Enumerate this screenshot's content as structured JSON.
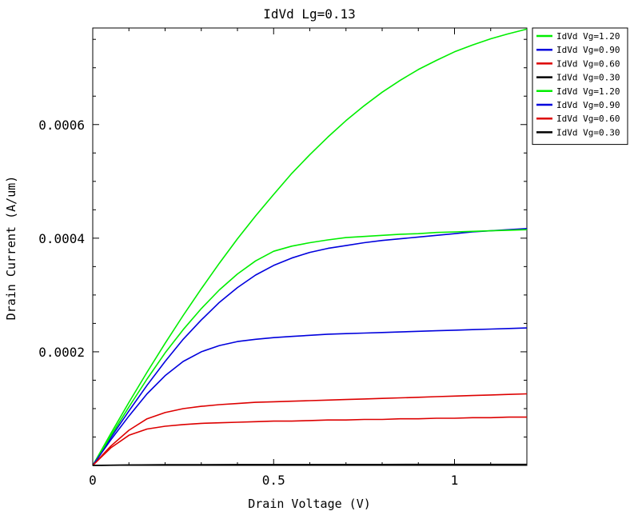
{
  "chart_data": {
    "type": "line",
    "title": "IdVd Lg=0.13",
    "xlabel": "Drain Voltage (V)",
    "ylabel": "Drain Current (A/um)",
    "xlim": [
      0,
      1.2
    ],
    "ylim": [
      0,
      0.00077
    ],
    "x_ticks": [
      {
        "value": 0,
        "label": "0"
      },
      {
        "value": 0.5,
        "label": "0.5"
      },
      {
        "value": 1,
        "label": "1"
      }
    ],
    "y_ticks": [
      {
        "value": 0.0002,
        "label": "0.0002"
      },
      {
        "value": 0.0004,
        "label": "0.0004"
      },
      {
        "value": 0.0006,
        "label": "0.0006"
      }
    ],
    "grid": false,
    "legend_position": "right",
    "series": [
      {
        "name": "IdVd Vg=1.20",
        "color": "#00ee00",
        "x": [
          0,
          0.05,
          0.1,
          0.15,
          0.2,
          0.25,
          0.3,
          0.35,
          0.4,
          0.45,
          0.5,
          0.55,
          0.6,
          0.65,
          0.7,
          0.75,
          0.8,
          0.85,
          0.9,
          0.95,
          1.0,
          1.05,
          1.1,
          1.15,
          1.2
        ],
        "y": [
          0,
          5.6e-05,
          0.000111,
          0.000164,
          0.000215,
          0.000264,
          0.000311,
          0.000356,
          0.000399,
          0.000439,
          0.000477,
          0.000514,
          0.000547,
          0.000578,
          0.000607,
          0.000633,
          0.000657,
          0.000678,
          0.000697,
          0.000713,
          0.000728,
          0.00074,
          0.000751,
          0.00076,
          0.000768
        ]
      },
      {
        "name": "IdVd Vg=0.90",
        "color": "#0000dd",
        "x": [
          0,
          0.05,
          0.1,
          0.15,
          0.2,
          0.25,
          0.3,
          0.35,
          0.4,
          0.45,
          0.5,
          0.55,
          0.6,
          0.65,
          0.7,
          0.75,
          0.8,
          0.85,
          0.9,
          0.95,
          1.0,
          1.05,
          1.1,
          1.15,
          1.2
        ],
        "y": [
          0,
          4.9e-05,
          9.6e-05,
          0.000141,
          0.000183,
          0.000222,
          0.000256,
          0.000287,
          0.000313,
          0.000335,
          0.000352,
          0.000365,
          0.000375,
          0.000382,
          0.000387,
          0.000392,
          0.000396,
          0.000399,
          0.000402,
          0.000405,
          0.000408,
          0.000411,
          0.000413,
          0.000415,
          0.000417
        ]
      },
      {
        "name": "IdVd Vg=0.60",
        "color": "#dd0000",
        "x": [
          0,
          0.05,
          0.1,
          0.15,
          0.2,
          0.25,
          0.3,
          0.35,
          0.4,
          0.45,
          0.5,
          0.55,
          0.6,
          0.65,
          0.7,
          0.75,
          0.8,
          0.85,
          0.9,
          0.95,
          1.0,
          1.05,
          1.1,
          1.15,
          1.2
        ],
        "y": [
          0,
          3.4e-05,
          6.2e-05,
          8.2e-05,
          9.3e-05,
          0.0001,
          0.000104,
          0.000107,
          0.000109,
          0.000111,
          0.000112,
          0.000113,
          0.000114,
          0.000115,
          0.000116,
          0.000117,
          0.000118,
          0.000119,
          0.00012,
          0.000121,
          0.000122,
          0.000123,
          0.000124,
          0.000125,
          0.000126
        ]
      },
      {
        "name": "IdVd Vg=0.30",
        "color": "#000000",
        "x": [
          0,
          0.1,
          0.2,
          0.3,
          0.4,
          0.5,
          0.6,
          0.7,
          0.8,
          0.9,
          1.0,
          1.1,
          1.2
        ],
        "y": [
          0,
          8e-07,
          1.2e-06,
          1.4e-06,
          1.5e-06,
          1.6e-06,
          1.6e-06,
          1.7e-06,
          1.7e-06,
          1.8e-06,
          1.8e-06,
          1.8e-06,
          1.9e-06
        ]
      },
      {
        "name": "IdVd Vg=1.20",
        "color": "#00ee00",
        "x": [
          0,
          0.05,
          0.1,
          0.15,
          0.2,
          0.25,
          0.3,
          0.35,
          0.4,
          0.45,
          0.5,
          0.55,
          0.6,
          0.65,
          0.7,
          0.75,
          0.8,
          0.85,
          0.9,
          0.95,
          1.0,
          1.05,
          1.1,
          1.15,
          1.2
        ],
        "y": [
          0,
          5.2e-05,
          0.000103,
          0.000152,
          0.000198,
          0.000239,
          0.000276,
          0.000309,
          0.000337,
          0.00036,
          0.000377,
          0.000386,
          0.000392,
          0.000397,
          0.000401,
          0.000403,
          0.000405,
          0.000407,
          0.000408,
          0.00041,
          0.000411,
          0.000412,
          0.000413,
          0.000414,
          0.000415
        ]
      },
      {
        "name": "IdVd Vg=0.90",
        "color": "#0000dd",
        "x": [
          0,
          0.05,
          0.1,
          0.15,
          0.2,
          0.25,
          0.3,
          0.35,
          0.4,
          0.45,
          0.5,
          0.55,
          0.6,
          0.65,
          0.7,
          0.75,
          0.8,
          0.85,
          0.9,
          0.95,
          1.0,
          1.05,
          1.1,
          1.15,
          1.2
        ],
        "y": [
          0,
          4.5e-05,
          8.7e-05,
          0.000126,
          0.000158,
          0.000183,
          0.0002,
          0.000211,
          0.000218,
          0.000222,
          0.000225,
          0.000227,
          0.000229,
          0.000231,
          0.000232,
          0.000233,
          0.000234,
          0.000235,
          0.000236,
          0.000237,
          0.000238,
          0.000239,
          0.00024,
          0.000241,
          0.000242
        ]
      },
      {
        "name": "IdVd Vg=0.60",
        "color": "#dd0000",
        "x": [
          0,
          0.05,
          0.1,
          0.15,
          0.2,
          0.25,
          0.3,
          0.35,
          0.4,
          0.45,
          0.5,
          0.55,
          0.6,
          0.65,
          0.7,
          0.75,
          0.8,
          0.85,
          0.9,
          0.95,
          1.0,
          1.05,
          1.1,
          1.15,
          1.2
        ],
        "y": [
          0,
          3.1e-05,
          5.3e-05,
          6.4e-05,
          6.9e-05,
          7.2e-05,
          7.4e-05,
          7.5e-05,
          7.6e-05,
          7.7e-05,
          7.8e-05,
          7.8e-05,
          7.9e-05,
          8e-05,
          8e-05,
          8.1e-05,
          8.1e-05,
          8.2e-05,
          8.2e-05,
          8.3e-05,
          8.3e-05,
          8.4e-05,
          8.4e-05,
          8.5e-05,
          8.5e-05
        ]
      },
      {
        "name": "IdVd Vg=0.30",
        "color": "#000000",
        "x": [
          0,
          0.1,
          0.2,
          0.3,
          0.4,
          0.5,
          0.6,
          0.7,
          0.8,
          0.9,
          1.0,
          1.1,
          1.2
        ],
        "y": [
          0,
          6e-07,
          9e-07,
          1e-06,
          1.1e-06,
          1.1e-06,
          1.2e-06,
          1.2e-06,
          1.2e-06,
          1.3e-06,
          1.3e-06,
          1.3e-06,
          1.3e-06
        ]
      }
    ]
  }
}
